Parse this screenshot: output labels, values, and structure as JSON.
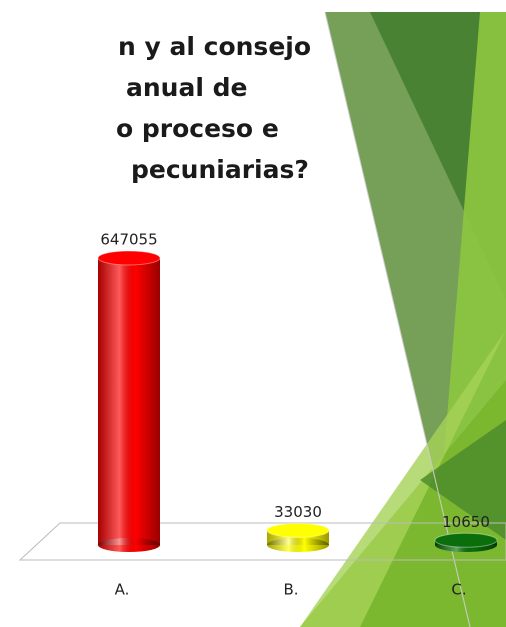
{
  "chart_data": {
    "type": "bar",
    "title_lines": [
      "n y al consejo",
      "anual de",
      "o proceso e",
      "pecuniarias?"
    ],
    "categories": [
      "A.",
      "B.",
      "C."
    ],
    "values": [
      647055,
      33030,
      10650
    ],
    "colors": [
      "#ff0000",
      "#ffff00",
      "#0a6e0a"
    ]
  }
}
